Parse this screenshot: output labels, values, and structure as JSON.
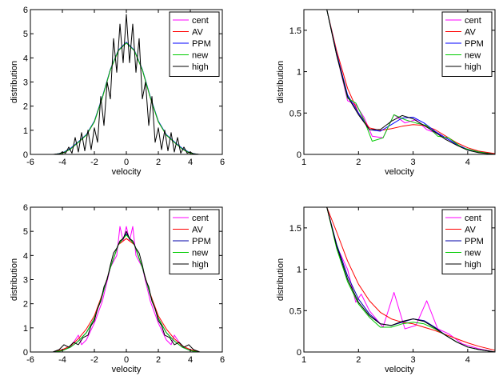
{
  "chart_data": [
    {
      "type": "line",
      "xlabel": "velocity",
      "ylabel": "distribution",
      "xlim": [
        -6,
        6
      ],
      "ylim": [
        0,
        6
      ],
      "xticks": [
        "-6",
        "-4",
        "-2",
        "0",
        "2",
        "4",
        "6"
      ],
      "yticks": [
        "0",
        "1",
        "2",
        "3",
        "4",
        "5",
        "6"
      ],
      "legend_position": "top-right",
      "series": [
        {
          "name": "cent",
          "color": "#ff00ff",
          "x": [
            -4.5,
            -4,
            -3.5,
            -3,
            -2.5,
            -2,
            -1.5,
            -1,
            -0.5,
            0,
            0.5,
            1,
            1.5,
            2,
            2.5,
            3,
            3.5,
            4,
            4.5
          ],
          "y": [
            0,
            0.05,
            0.22,
            0.5,
            0.8,
            1.35,
            2.35,
            3.5,
            4.3,
            4.62,
            4.3,
            3.5,
            2.35,
            1.35,
            0.8,
            0.5,
            0.22,
            0.05,
            0
          ]
        },
        {
          "name": "AV",
          "color": "#ff0000",
          "x": [
            -4.5,
            -4,
            -3.5,
            -3,
            -2.5,
            -2,
            -1.5,
            -1,
            -0.5,
            0,
            0.5,
            1,
            1.5,
            2,
            2.5,
            3,
            3.5,
            4,
            4.5
          ],
          "y": [
            0,
            0.05,
            0.22,
            0.5,
            0.8,
            1.35,
            2.35,
            3.5,
            4.3,
            4.62,
            4.3,
            3.5,
            2.35,
            1.35,
            0.8,
            0.5,
            0.22,
            0.05,
            0
          ]
        },
        {
          "name": "PPM",
          "color": "#0000ff",
          "x": [
            -4.5,
            -4,
            -3.5,
            -3,
            -2.5,
            -2,
            -1.5,
            -1,
            -0.5,
            0,
            0.5,
            1,
            1.5,
            2,
            2.5,
            3,
            3.5,
            4,
            4.5
          ],
          "y": [
            0,
            0.06,
            0.25,
            0.52,
            0.82,
            1.38,
            2.38,
            3.52,
            4.32,
            4.65,
            4.32,
            3.52,
            2.38,
            1.38,
            0.82,
            0.52,
            0.25,
            0.06,
            0
          ]
        },
        {
          "name": "new",
          "color": "#00cc00",
          "x": [
            -4.5,
            -4,
            -3.5,
            -3,
            -2.5,
            -2,
            -1.5,
            -1,
            -0.5,
            0,
            0.5,
            1,
            1.5,
            2,
            2.5,
            3,
            3.5,
            4,
            4.5
          ],
          "y": [
            0,
            0.05,
            0.22,
            0.5,
            0.8,
            1.35,
            2.35,
            3.5,
            4.3,
            4.62,
            4.3,
            3.5,
            2.35,
            1.35,
            0.8,
            0.5,
            0.22,
            0.05,
            0
          ]
        },
        {
          "name": "high",
          "color": "#000000",
          "x": [
            -4.6,
            -4.2,
            -4,
            -3.8,
            -3.6,
            -3.4,
            -3.2,
            -3,
            -2.8,
            -2.6,
            -2.4,
            -2.2,
            -2,
            -1.8,
            -1.6,
            -1.4,
            -1.2,
            -1,
            -0.8,
            -0.6,
            -0.4,
            -0.2,
            0,
            0.2,
            0.4,
            0.6,
            0.8,
            1,
            1.2,
            1.4,
            1.6,
            1.8,
            2,
            2.2,
            2.4,
            2.6,
            2.8,
            3,
            3.2,
            3.4,
            3.6,
            3.8,
            4,
            4.2,
            4.6
          ],
          "y": [
            0,
            0.02,
            0.1,
            0.05,
            0.3,
            0.05,
            0.7,
            0.1,
            0.9,
            0.15,
            1.0,
            0.2,
            1.1,
            0.5,
            2.4,
            1.2,
            3.0,
            2.3,
            4.8,
            3.4,
            5.4,
            3.8,
            5.8,
            3.8,
            5.4,
            3.4,
            4.8,
            2.3,
            3.0,
            1.2,
            2.4,
            0.5,
            1.1,
            0.2,
            1.0,
            0.15,
            0.9,
            0.1,
            0.7,
            0.05,
            0.3,
            0.05,
            0.1,
            0.02,
            0
          ]
        }
      ]
    },
    {
      "type": "line",
      "xlabel": "velocity",
      "ylabel": "distribution",
      "xlim": [
        1,
        4.5
      ],
      "ylim": [
        0,
        1.75
      ],
      "xticks": [
        "1",
        "2",
        "3",
        "4"
      ],
      "yticks": [
        "0",
        "0.5",
        "1",
        "1.5"
      ],
      "legend_position": "top-right",
      "series": [
        {
          "name": "cent",
          "color": "#ff00ff",
          "x": [
            1.42,
            1.6,
            1.8,
            1.95,
            2.1,
            2.25,
            2.45,
            2.65,
            2.85,
            3.05,
            3.25,
            3.45,
            3.65,
            3.9,
            4.2,
            4.5
          ],
          "y": [
            1.75,
            1.2,
            0.65,
            0.6,
            0.45,
            0.22,
            0.2,
            0.48,
            0.38,
            0.42,
            0.3,
            0.25,
            0.18,
            0.08,
            0.03,
            0
          ]
        },
        {
          "name": "AV",
          "color": "#ff0000",
          "x": [
            1.42,
            1.6,
            1.8,
            2.0,
            2.2,
            2.4,
            2.6,
            2.8,
            3.0,
            3.2,
            3.4,
            3.6,
            3.8,
            4.0,
            4.2,
            4.5
          ],
          "y": [
            1.75,
            1.25,
            0.8,
            0.5,
            0.32,
            0.29,
            0.31,
            0.34,
            0.36,
            0.35,
            0.3,
            0.22,
            0.14,
            0.08,
            0.04,
            0.01
          ]
        },
        {
          "name": "PPM",
          "color": "#0000ff",
          "x": [
            1.42,
            1.6,
            1.8,
            2.0,
            2.2,
            2.4,
            2.6,
            2.8,
            3.0,
            3.2,
            3.4,
            3.6,
            3.8,
            4.0,
            4.2,
            4.5
          ],
          "y": [
            1.75,
            1.22,
            0.72,
            0.5,
            0.3,
            0.28,
            0.36,
            0.44,
            0.45,
            0.38,
            0.28,
            0.2,
            0.12,
            0.06,
            0.03,
            0
          ]
        },
        {
          "name": "new",
          "color": "#00cc00",
          "x": [
            1.42,
            1.6,
            1.8,
            1.95,
            2.1,
            2.25,
            2.45,
            2.65,
            2.85,
            3.05,
            3.25,
            3.45,
            3.65,
            3.9,
            4.2,
            4.5
          ],
          "y": [
            1.75,
            1.2,
            0.68,
            0.62,
            0.42,
            0.16,
            0.2,
            0.48,
            0.42,
            0.38,
            0.35,
            0.22,
            0.2,
            0.08,
            0.03,
            0
          ]
        },
        {
          "name": "high",
          "color": "#000000",
          "x": [
            1.42,
            1.6,
            1.8,
            2.0,
            2.2,
            2.4,
            2.6,
            2.8,
            3.0,
            3.2,
            3.4,
            3.6,
            3.8,
            4.0,
            4.2,
            4.5
          ],
          "y": [
            1.75,
            1.2,
            0.7,
            0.48,
            0.3,
            0.3,
            0.4,
            0.47,
            0.43,
            0.35,
            0.27,
            0.18,
            0.11,
            0.05,
            0.02,
            0
          ]
        }
      ]
    },
    {
      "type": "line",
      "xlabel": "velocity",
      "ylabel": "distribution",
      "xlim": [
        -6,
        6
      ],
      "ylim": [
        0,
        6
      ],
      "xticks": [
        "-6",
        "-4",
        "-2",
        "0",
        "2",
        "4",
        "6"
      ],
      "yticks": [
        "0",
        "1",
        "2",
        "3",
        "4",
        "5",
        "6"
      ],
      "legend_position": "top-right",
      "series": [
        {
          "name": "cent",
          "color": "#ff00ff",
          "x": [
            -4.5,
            -4,
            -3.5,
            -3,
            -2.8,
            -2.5,
            -2,
            -1.5,
            -1,
            -0.6,
            -0.4,
            -0.2,
            0,
            0.2,
            0.4,
            0.6,
            1,
            1.5,
            2,
            2.5,
            2.8,
            3,
            3.5,
            4,
            4.5
          ],
          "y": [
            0,
            0.08,
            0.2,
            0.7,
            0.3,
            0.5,
            1.2,
            2.1,
            3.5,
            4.0,
            5.2,
            4.6,
            5.2,
            4.6,
            5.2,
            4.0,
            3.5,
            2.1,
            1.2,
            0.5,
            0.3,
            0.7,
            0.2,
            0.08,
            0
          ]
        },
        {
          "name": "AV",
          "color": "#ff0000",
          "x": [
            -4.5,
            -4,
            -3.5,
            -3,
            -2.5,
            -2,
            -1.5,
            -1,
            -0.5,
            0,
            0.5,
            1,
            1.5,
            2,
            2.5,
            3,
            3.5,
            4,
            4.5
          ],
          "y": [
            0.02,
            0.1,
            0.25,
            0.55,
            0.95,
            1.5,
            2.4,
            3.5,
            4.45,
            4.7,
            4.45,
            3.5,
            2.4,
            1.5,
            0.95,
            0.55,
            0.25,
            0.1,
            0.02
          ]
        },
        {
          "name": "PPM",
          "color": "#0000aa",
          "x": [
            -4.5,
            -4,
            -3.5,
            -3,
            -2.5,
            -2,
            -1.5,
            -1,
            -0.5,
            0,
            0.5,
            1,
            1.5,
            2,
            2.5,
            3,
            3.5,
            4,
            4.5
          ],
          "y": [
            0,
            0.06,
            0.2,
            0.45,
            0.8,
            1.4,
            2.35,
            3.5,
            4.45,
            4.9,
            4.45,
            3.5,
            2.35,
            1.4,
            0.8,
            0.45,
            0.2,
            0.06,
            0
          ]
        },
        {
          "name": "new",
          "color": "#00cc00",
          "x": [
            -4.5,
            -4,
            -3.5,
            -3,
            -2.5,
            -2,
            -1.5,
            -1,
            -0.5,
            0,
            0.5,
            1,
            1.5,
            2,
            2.5,
            3,
            3.5,
            4,
            4.5
          ],
          "y": [
            0,
            0.06,
            0.2,
            0.45,
            0.8,
            1.4,
            2.35,
            3.5,
            4.45,
            4.85,
            4.45,
            3.5,
            2.35,
            1.4,
            0.8,
            0.45,
            0.2,
            0.06,
            0
          ]
        },
        {
          "name": "high",
          "color": "#000000",
          "x": [
            -4.6,
            -4.2,
            -3.9,
            -3.6,
            -3.3,
            -3.0,
            -2.7,
            -2.4,
            -2.2,
            -2.0,
            -1.8,
            -1.6,
            -1.4,
            -1.2,
            -1.0,
            -0.8,
            -0.6,
            -0.4,
            -0.2,
            0,
            0.2,
            0.4,
            0.6,
            0.8,
            1.0,
            1.2,
            1.4,
            1.6,
            1.8,
            2.0,
            2.2,
            2.4,
            2.7,
            3.0,
            3.3,
            3.6,
            3.9,
            4.2,
            4.6
          ],
          "y": [
            0,
            0.1,
            0.3,
            0.2,
            0.4,
            0.3,
            0.6,
            0.7,
            1.1,
            1.3,
            1.8,
            2.1,
            2.7,
            3.0,
            3.6,
            4.1,
            4.3,
            4.6,
            4.7,
            5.0,
            4.7,
            4.6,
            4.3,
            4.1,
            3.6,
            3.0,
            2.7,
            2.1,
            1.8,
            1.3,
            1.1,
            0.7,
            0.6,
            0.3,
            0.4,
            0.2,
            0.3,
            0.1,
            0
          ]
        }
      ]
    },
    {
      "type": "line",
      "xlabel": "velocity",
      "ylabel": "distribution",
      "xlim": [
        1,
        4.5
      ],
      "ylim": [
        0,
        1.75
      ],
      "xticks": [
        "1",
        "2",
        "3",
        "4"
      ],
      "yticks": [
        "0",
        "0.5",
        "1",
        "1.5"
      ],
      "legend_position": "top-right",
      "series": [
        {
          "name": "cent",
          "color": "#ff00ff",
          "x": [
            1.42,
            1.6,
            1.8,
            1.95,
            2.05,
            2.2,
            2.45,
            2.65,
            2.85,
            3.05,
            3.25,
            3.45,
            3.65,
            3.9,
            4.2,
            4.5
          ],
          "y": [
            1.75,
            1.28,
            1.0,
            0.6,
            0.7,
            0.5,
            0.3,
            0.72,
            0.28,
            0.32,
            0.62,
            0.28,
            0.22,
            0.1,
            0.04,
            0
          ]
        },
        {
          "name": "AV",
          "color": "#ff0000",
          "x": [
            1.42,
            1.6,
            1.8,
            2.0,
            2.2,
            2.4,
            2.6,
            2.8,
            3.0,
            3.2,
            3.4,
            3.6,
            3.8,
            4.0,
            4.2,
            4.5
          ],
          "y": [
            1.75,
            1.45,
            1.1,
            0.82,
            0.62,
            0.48,
            0.4,
            0.36,
            0.34,
            0.3,
            0.26,
            0.21,
            0.16,
            0.11,
            0.07,
            0.02
          ]
        },
        {
          "name": "PPM",
          "color": "#0000aa",
          "x": [
            1.42,
            1.6,
            1.8,
            2.0,
            2.2,
            2.4,
            2.6,
            2.8,
            3.0,
            3.2,
            3.4,
            3.6,
            3.8,
            4.0,
            4.2,
            4.5
          ],
          "y": [
            1.75,
            1.3,
            0.92,
            0.64,
            0.46,
            0.34,
            0.32,
            0.36,
            0.4,
            0.38,
            0.3,
            0.2,
            0.12,
            0.06,
            0.03,
            0
          ]
        },
        {
          "name": "new",
          "color": "#00cc00",
          "x": [
            1.42,
            1.6,
            1.8,
            2.0,
            2.2,
            2.4,
            2.6,
            2.8,
            3.0,
            3.2,
            3.4,
            3.6,
            3.8,
            4.0,
            4.2,
            4.5
          ],
          "y": [
            1.75,
            1.25,
            0.85,
            0.58,
            0.42,
            0.3,
            0.3,
            0.34,
            0.36,
            0.34,
            0.28,
            0.2,
            0.12,
            0.06,
            0.03,
            0
          ]
        },
        {
          "name": "high",
          "color": "#000000",
          "x": [
            1.42,
            1.6,
            1.8,
            2.0,
            2.2,
            2.4,
            2.6,
            2.8,
            3.0,
            3.2,
            3.4,
            3.6,
            3.8,
            4.0,
            4.2,
            4.5
          ],
          "y": [
            1.75,
            1.28,
            0.88,
            0.6,
            0.44,
            0.34,
            0.32,
            0.37,
            0.4,
            0.37,
            0.29,
            0.2,
            0.12,
            0.06,
            0.03,
            0
          ]
        }
      ]
    }
  ]
}
